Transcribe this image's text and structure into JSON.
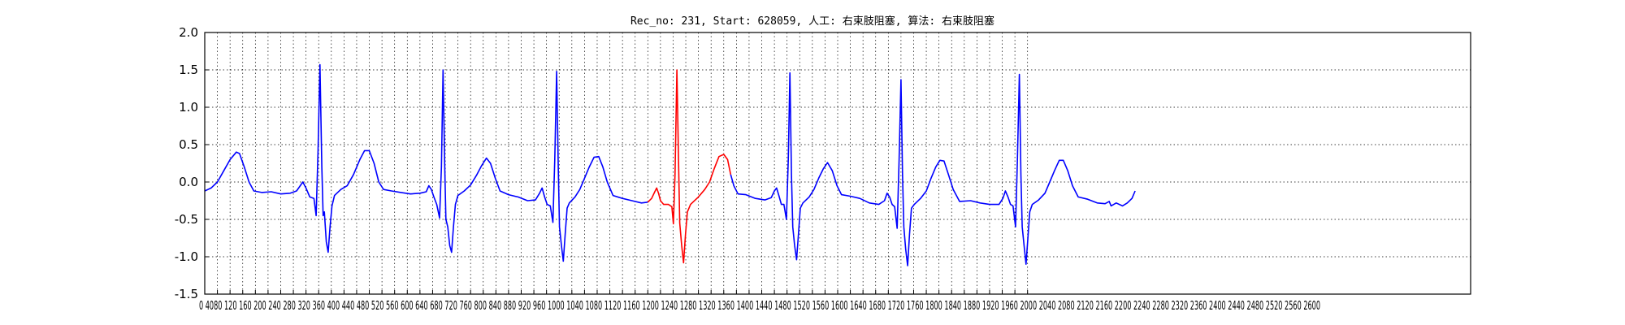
{
  "chart_data": {
    "type": "line",
    "title": "Rec_no: 231, Start: 628059, 人工: 右束肢阻塞, 算法: 右束肢阻塞",
    "xlabel": "",
    "ylabel": "",
    "xlim": [
      0,
      4000
    ],
    "ylim": [
      -1.5,
      2.0
    ],
    "grid": true,
    "x_tick_step": 40,
    "x_tick_max": 2600,
    "x_tick_labels_text": "0 4080 120 160 200 240 280 320 360 400 440 480 520 560 600 640 680 720 760 800 840 880 920 960 1000 1040 1080 1120 1160 1200 1240 1280 1320 1360 1400 1440 1480 1520 1560 1600 1640 1680 1720 1760 1800 1840 1880 1920 1960 2000 2040 2080 2120 2160 2200 2240 2280 2320 2360 2400 2440 2480 2520 2560 2600",
    "y_ticks": [
      "2.0",
      "1.5",
      "1.0",
      "0.5",
      "0.0",
      "-0.5",
      "-1.0",
      "-1.5"
    ],
    "y_tick_values": [
      2.0,
      1.5,
      1.0,
      0.5,
      0.0,
      -0.5,
      -1.0,
      -1.5
    ],
    "series": [
      {
        "color": "#0000ff",
        "points": [
          [
            0,
            -0.12
          ],
          [
            20,
            -0.08
          ],
          [
            40,
            0.0
          ],
          [
            60,
            0.15
          ],
          [
            80,
            0.3
          ],
          [
            100,
            0.4
          ],
          [
            110,
            0.38
          ],
          [
            125,
            0.2
          ],
          [
            140,
            0.0
          ],
          [
            155,
            -0.12
          ],
          [
            180,
            -0.14
          ],
          [
            210,
            -0.13
          ],
          [
            240,
            -0.16
          ],
          [
            270,
            -0.15
          ],
          [
            290,
            -0.12
          ],
          [
            300,
            -0.06
          ],
          [
            310,
            0.0
          ],
          [
            320,
            -0.08
          ],
          [
            332,
            -0.2
          ],
          [
            345,
            -0.22
          ],
          [
            352,
            -0.45
          ],
          [
            358,
            0.4
          ],
          [
            364,
            1.57
          ],
          [
            370,
            0.2
          ],
          [
            374,
            -0.45
          ],
          [
            378,
            -0.4
          ],
          [
            384,
            -0.8
          ],
          [
            390,
            -0.94
          ],
          [
            396,
            -0.6
          ],
          [
            402,
            -0.32
          ],
          [
            410,
            -0.18
          ],
          [
            430,
            -0.1
          ],
          [
            450,
            -0.05
          ],
          [
            470,
            0.1
          ],
          [
            490,
            0.3
          ],
          [
            505,
            0.42
          ],
          [
            520,
            0.42
          ],
          [
            535,
            0.25
          ],
          [
            550,
            0.0
          ],
          [
            565,
            -0.1
          ],
          [
            590,
            -0.12
          ],
          [
            620,
            -0.14
          ],
          [
            650,
            -0.16
          ],
          [
            680,
            -0.15
          ],
          [
            700,
            -0.13
          ],
          [
            708,
            -0.05
          ],
          [
            716,
            -0.1
          ],
          [
            724,
            -0.2
          ],
          [
            733,
            -0.3
          ],
          [
            742,
            -0.48
          ],
          [
            748,
            0.2
          ],
          [
            753,
            1.5
          ],
          [
            758,
            0.3
          ],
          [
            762,
            -0.5
          ],
          [
            768,
            -0.6
          ],
          [
            774,
            -0.85
          ],
          [
            780,
            -0.94
          ],
          [
            786,
            -0.6
          ],
          [
            792,
            -0.3
          ],
          [
            800,
            -0.18
          ],
          [
            820,
            -0.12
          ],
          [
            840,
            -0.04
          ],
          [
            860,
            0.1
          ],
          [
            875,
            0.22
          ],
          [
            890,
            0.32
          ],
          [
            903,
            0.25
          ],
          [
            918,
            0.05
          ],
          [
            933,
            -0.12
          ],
          [
            960,
            -0.17
          ],
          [
            990,
            -0.2
          ],
          [
            1020,
            -0.25
          ],
          [
            1045,
            -0.24
          ],
          [
            1058,
            -0.15
          ],
          [
            1066,
            -0.08
          ],
          [
            1074,
            -0.2
          ],
          [
            1082,
            -0.3
          ],
          [
            1092,
            -0.32
          ],
          [
            1100,
            -0.54
          ],
          [
            1106,
            0.3
          ],
          [
            1112,
            1.48
          ],
          [
            1117,
            0.2
          ],
          [
            1121,
            -0.6
          ],
          [
            1127,
            -0.85
          ],
          [
            1133,
            -1.06
          ],
          [
            1139,
            -0.7
          ],
          [
            1145,
            -0.35
          ],
          [
            1152,
            -0.28
          ],
          [
            1170,
            -0.2
          ],
          [
            1185,
            -0.1
          ],
          [
            1200,
            0.05
          ],
          [
            1215,
            0.2
          ],
          [
            1230,
            0.33
          ],
          [
            1245,
            0.34
          ],
          [
            1258,
            0.2
          ],
          [
            1272,
            0.0
          ],
          [
            1290,
            -0.18
          ],
          [
            1320,
            -0.22
          ],
          [
            1350,
            -0.25
          ],
          [
            1380,
            -0.28
          ],
          [
            1400,
            -0.27
          ]
        ]
      },
      {
        "color": "#ff0000",
        "points": [
          [
            1400,
            -0.27
          ],
          [
            1412,
            -0.22
          ],
          [
            1422,
            -0.13
          ],
          [
            1428,
            -0.08
          ],
          [
            1434,
            -0.15
          ],
          [
            1440,
            -0.25
          ],
          [
            1450,
            -0.3
          ],
          [
            1465,
            -0.3
          ],
          [
            1476,
            -0.33
          ],
          [
            1481,
            -0.56
          ],
          [
            1486,
            0.1
          ],
          [
            1492,
            1.5
          ],
          [
            1497,
            0.3
          ],
          [
            1501,
            -0.55
          ],
          [
            1507,
            -0.85
          ],
          [
            1513,
            -1.08
          ],
          [
            1519,
            -0.7
          ],
          [
            1525,
            -0.4
          ],
          [
            1535,
            -0.3
          ],
          [
            1560,
            -0.2
          ],
          [
            1580,
            -0.1
          ],
          [
            1595,
            0.0
          ],
          [
            1610,
            0.18
          ],
          [
            1625,
            0.34
          ],
          [
            1640,
            0.37
          ],
          [
            1652,
            0.3
          ],
          [
            1662,
            0.1
          ]
        ]
      },
      {
        "color": "#0000ff",
        "points": [
          [
            1662,
            0.1
          ],
          [
            1672,
            -0.05
          ],
          [
            1685,
            -0.16
          ],
          [
            1710,
            -0.17
          ],
          [
            1740,
            -0.22
          ],
          [
            1770,
            -0.24
          ],
          [
            1790,
            -0.21
          ],
          [
            1800,
            -0.12
          ],
          [
            1807,
            -0.08
          ],
          [
            1814,
            -0.18
          ],
          [
            1822,
            -0.3
          ],
          [
            1830,
            -0.3
          ],
          [
            1838,
            -0.5
          ],
          [
            1844,
            0.3
          ],
          [
            1849,
            1.46
          ],
          [
            1854,
            0.1
          ],
          [
            1858,
            -0.6
          ],
          [
            1864,
            -0.85
          ],
          [
            1870,
            -1.04
          ],
          [
            1876,
            -0.7
          ],
          [
            1882,
            -0.35
          ],
          [
            1890,
            -0.28
          ],
          [
            1910,
            -0.2
          ],
          [
            1925,
            -0.1
          ],
          [
            1940,
            0.05
          ],
          [
            1955,
            0.18
          ],
          [
            1968,
            0.26
          ],
          [
            1983,
            0.15
          ],
          [
            1998,
            -0.05
          ],
          [
            2012,
            -0.17
          ],
          [
            2040,
            -0.19
          ],
          [
            2070,
            -0.22
          ],
          [
            2100,
            -0.28
          ],
          [
            2130,
            -0.3
          ],
          [
            2148,
            -0.25
          ],
          [
            2156,
            -0.15
          ],
          [
            2164,
            -0.2
          ],
          [
            2172,
            -0.3
          ],
          [
            2180,
            -0.33
          ],
          [
            2188,
            -0.62
          ],
          [
            2194,
            0.3
          ],
          [
            2200,
            1.37
          ],
          [
            2205,
            0.1
          ],
          [
            2209,
            -0.6
          ],
          [
            2215,
            -0.9
          ],
          [
            2221,
            -1.12
          ],
          [
            2227,
            -0.7
          ],
          [
            2233,
            -0.35
          ],
          [
            2242,
            -0.3
          ],
          [
            2262,
            -0.22
          ],
          [
            2280,
            -0.12
          ],
          [
            2295,
            0.05
          ],
          [
            2310,
            0.2
          ],
          [
            2323,
            0.29
          ],
          [
            2336,
            0.28
          ],
          [
            2350,
            0.1
          ],
          [
            2365,
            -0.1
          ],
          [
            2385,
            -0.26
          ],
          [
            2420,
            -0.25
          ],
          [
            2450,
            -0.28
          ],
          [
            2480,
            -0.3
          ],
          [
            2510,
            -0.3
          ],
          [
            2522,
            -0.22
          ],
          [
            2530,
            -0.12
          ],
          [
            2538,
            -0.2
          ],
          [
            2546,
            -0.3
          ],
          [
            2554,
            -0.32
          ],
          [
            2562,
            -0.6
          ],
          [
            2568,
            0.3
          ],
          [
            2574,
            1.44
          ],
          [
            2579,
            0.1
          ],
          [
            2583,
            -0.6
          ],
          [
            2589,
            -0.85
          ],
          [
            2595,
            -1.1
          ],
          [
            2601,
            -0.75
          ],
          [
            2607,
            -0.4
          ],
          [
            2615,
            -0.3
          ],
          [
            2635,
            -0.24
          ],
          [
            2655,
            -0.15
          ],
          [
            2670,
            0.0
          ],
          [
            2685,
            0.15
          ],
          [
            2700,
            0.29
          ],
          [
            2713,
            0.29
          ],
          [
            2727,
            0.15
          ],
          [
            2742,
            -0.05
          ],
          [
            2760,
            -0.2
          ],
          [
            2790,
            -0.23
          ],
          [
            2820,
            -0.28
          ],
          [
            2845,
            -0.29
          ],
          [
            2858,
            -0.26
          ],
          [
            2864,
            -0.32
          ],
          [
            2880,
            -0.28
          ],
          [
            2900,
            -0.32
          ],
          [
            2915,
            -0.28
          ],
          [
            2930,
            -0.22
          ],
          [
            2940,
            -0.12
          ]
        ]
      }
    ]
  }
}
